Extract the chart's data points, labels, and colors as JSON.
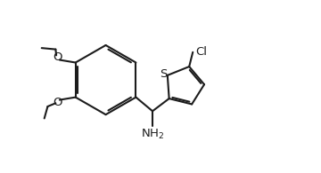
{
  "bg_color": "#ffffff",
  "lc": "#1c1c1c",
  "lw": 1.5,
  "fs": 9.5,
  "figsize": [
    3.6,
    1.95
  ],
  "dpi": 100,
  "xlim": [
    0.0,
    9.5
  ],
  "ylim": [
    0.3,
    5.5
  ],
  "bx": 3.1,
  "by": 3.1,
  "br": 1.05,
  "tr": 0.6
}
